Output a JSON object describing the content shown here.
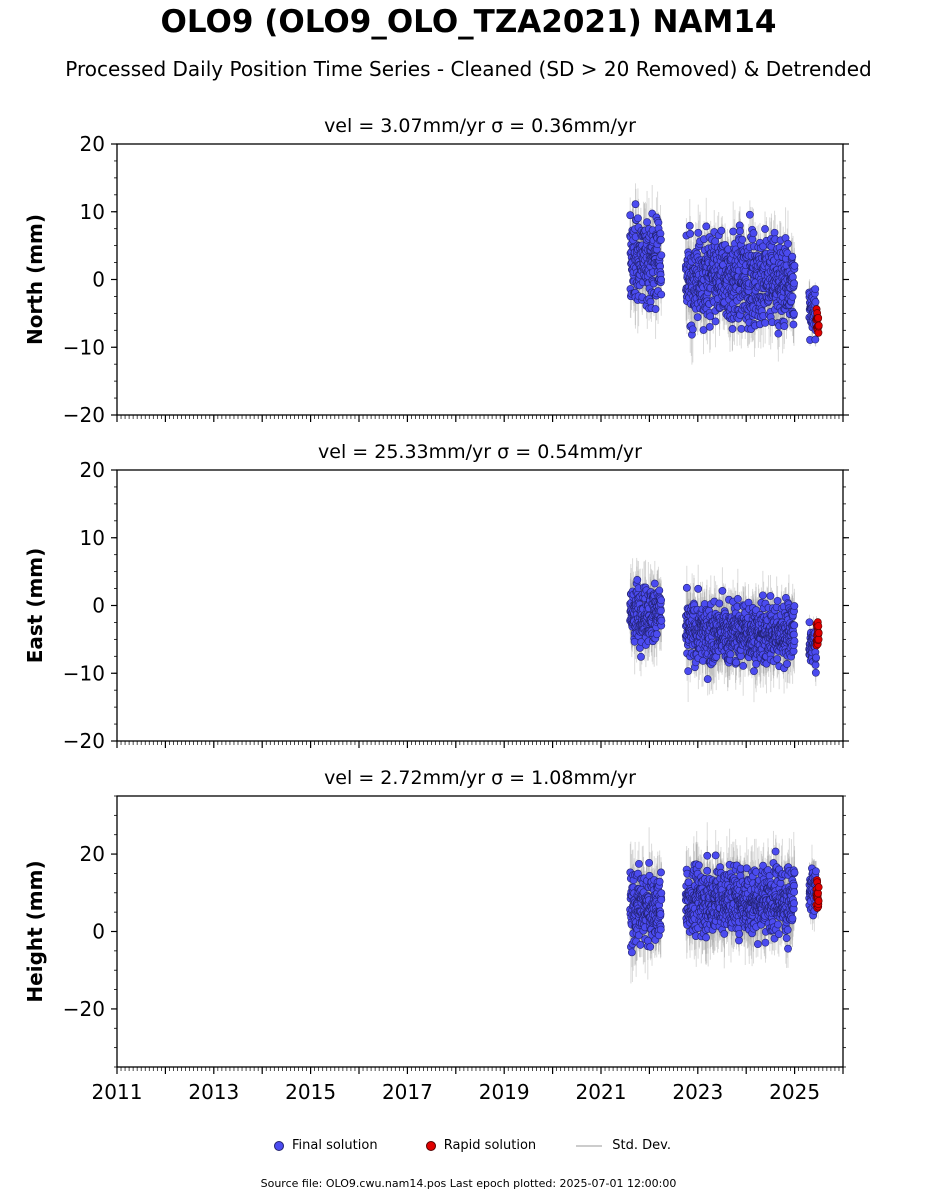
{
  "header": {
    "title": "OLO9 (OLO9_OLO_TZA2021) NAM14",
    "subtitle": "Processed Daily Position Time Series - Cleaned (SD > 20 Removed) & Detrended"
  },
  "legend": {
    "final_label": "Final solution",
    "rapid_label": "Rapid solution",
    "sd_label": "Std. Dev."
  },
  "footer": {
    "text": "Source file: OLO9.cwu.nam14.pos  Last epoch plotted: 2025-07-01 12:00:00"
  },
  "colors": {
    "final": "#4b4bf0",
    "rapid": "#e00000",
    "std_dev": "#999999"
  },
  "chart_data": [
    {
      "type": "scatter",
      "title": "vel = 3.07mm/yr   σ = 0.36mm/yr",
      "ylabel": "North (mm)",
      "xlim": [
        2011.0,
        2026.0
      ],
      "ylim": [
        -20,
        20
      ],
      "yticks": [
        -20,
        -10,
        0,
        10,
        20
      ],
      "ytick_labels": [
        "−20",
        "−10",
        "0",
        "10",
        "20"
      ],
      "xtick_labels": [],
      "series": [
        {
          "name": "Final solution",
          "role": "final",
          "segments": [
            {
              "x0": 2021.6,
              "x1": 2022.25,
              "mean": 3,
              "spread": 6,
              "sd": 4
            },
            {
              "x0": 2022.75,
              "x1": 2025.0,
              "mean": 0,
              "spread": 6,
              "sd": 4
            },
            {
              "x0": 2025.3,
              "x1": 2025.45,
              "mean": -5,
              "spread": 3,
              "sd": 2
            }
          ]
        },
        {
          "name": "Rapid solution",
          "role": "rapid",
          "segments": [
            {
              "x0": 2025.45,
              "x1": 2025.5,
              "mean": -6,
              "spread": 2,
              "sd": 1
            }
          ]
        }
      ]
    },
    {
      "type": "scatter",
      "title": "vel = 25.33mm/yr   σ = 0.54mm/yr",
      "ylabel": "East (mm)",
      "xlim": [
        2011.0,
        2026.0
      ],
      "ylim": [
        -20,
        20
      ],
      "yticks": [
        -20,
        -10,
        0,
        10,
        20
      ],
      "ytick_labels": [
        "−20",
        "−10",
        "0",
        "10",
        "20"
      ],
      "xtick_labels": [],
      "series": [
        {
          "name": "Final solution",
          "role": "final",
          "segments": [
            {
              "x0": 2021.6,
              "x1": 2022.25,
              "mean": -1,
              "spread": 4,
              "sd": 4
            },
            {
              "x0": 2022.75,
              "x1": 2025.0,
              "mean": -4,
              "spread": 4,
              "sd": 4
            },
            {
              "x0": 2025.3,
              "x1": 2025.45,
              "mean": -6,
              "spread": 3,
              "sd": 2
            }
          ]
        },
        {
          "name": "Rapid solution",
          "role": "rapid",
          "segments": [
            {
              "x0": 2025.45,
              "x1": 2025.5,
              "mean": -4,
              "spread": 2,
              "sd": 1
            }
          ]
        }
      ]
    },
    {
      "type": "scatter",
      "title": "vel = 2.72mm/yr   σ = 1.08mm/yr",
      "ylabel": "Height (mm)",
      "xlim": [
        2011.0,
        2026.0
      ],
      "ylim": [
        -35,
        35
      ],
      "yticks": [
        -20,
        0,
        20
      ],
      "ytick_labels": [
        "−20",
        "0",
        "20"
      ],
      "xtick_labels": [
        "2011",
        "2013",
        "2015",
        "2017",
        "2019",
        "2021",
        "2023",
        "2025"
      ],
      "xtick_values": [
        2011,
        2013,
        2015,
        2017,
        2019,
        2021,
        2023,
        2025
      ],
      "series": [
        {
          "name": "Final solution",
          "role": "final",
          "segments": [
            {
              "x0": 2021.6,
              "x1": 2022.25,
              "mean": 6,
              "spread": 8,
              "sd": 8
            },
            {
              "x0": 2022.75,
              "x1": 2025.0,
              "mean": 8,
              "spread": 8,
              "sd": 8
            },
            {
              "x0": 2025.3,
              "x1": 2025.45,
              "mean": 10,
              "spread": 6,
              "sd": 5
            }
          ]
        },
        {
          "name": "Rapid solution",
          "role": "rapid",
          "segments": [
            {
              "x0": 2025.45,
              "x1": 2025.5,
              "mean": 9,
              "spread": 3,
              "sd": 3
            }
          ]
        }
      ]
    }
  ]
}
